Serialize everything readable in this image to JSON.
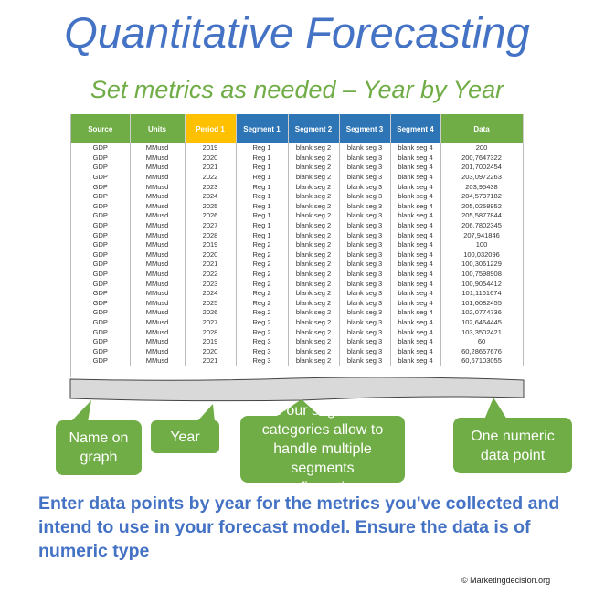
{
  "title": "Quantitative Forecasting",
  "subtitle": "Set metrics as needed – Year by Year",
  "colors": {
    "title": "#4472C4",
    "green": "#70AD47",
    "period": "#FFC000",
    "segment": "#2E75B6"
  },
  "table": {
    "headers": [
      "Source",
      "Units",
      "Period 1",
      "Segment 1",
      "Segment 2",
      "Segment 3",
      "Segment 4",
      "Data"
    ],
    "rows": [
      [
        "GDP",
        "MMusd",
        "2019",
        "Reg 1",
        "blank seg 2",
        "blank seg 3",
        "blank seg 4",
        "200"
      ],
      [
        "GDP",
        "MMusd",
        "2020",
        "Reg 1",
        "blank seg 2",
        "blank seg 3",
        "blank seg 4",
        "200,7647322"
      ],
      [
        "GDP",
        "MMusd",
        "2021",
        "Reg 1",
        "blank seg 2",
        "blank seg 3",
        "blank seg 4",
        "201,7002454"
      ],
      [
        "GDP",
        "MMusd",
        "2022",
        "Reg 1",
        "blank seg 2",
        "blank seg 3",
        "blank seg 4",
        "203,0972263"
      ],
      [
        "GDP",
        "MMusd",
        "2023",
        "Reg 1",
        "blank seg 2",
        "blank seg 3",
        "blank seg 4",
        "203,95438"
      ],
      [
        "GDP",
        "MMusd",
        "2024",
        "Reg 1",
        "blank seg 2",
        "blank seg 3",
        "blank seg 4",
        "204,5737182"
      ],
      [
        "GDP",
        "MMusd",
        "2025",
        "Reg 1",
        "blank seg 2",
        "blank seg 3",
        "blank seg 4",
        "205,0258952"
      ],
      [
        "GDP",
        "MMusd",
        "2026",
        "Reg 1",
        "blank seg 2",
        "blank seg 3",
        "blank seg 4",
        "205,5877844"
      ],
      [
        "GDP",
        "MMusd",
        "2027",
        "Reg 1",
        "blank seg 2",
        "blank seg 3",
        "blank seg 4",
        "206,7802345"
      ],
      [
        "GDP",
        "MMusd",
        "2028",
        "Reg 1",
        "blank seg 2",
        "blank seg 3",
        "blank seg 4",
        "207,941846"
      ],
      [
        "GDP",
        "MMusd",
        "2019",
        "Reg 2",
        "blank seg 2",
        "blank seg 3",
        "blank seg 4",
        "100"
      ],
      [
        "GDP",
        "MMusd",
        "2020",
        "Reg 2",
        "blank seg 2",
        "blank seg 3",
        "blank seg 4",
        "100,032096"
      ],
      [
        "GDP",
        "MMusd",
        "2021",
        "Reg 2",
        "blank seg 2",
        "blank seg 3",
        "blank seg 4",
        "100,3061229"
      ],
      [
        "GDP",
        "MMusd",
        "2022",
        "Reg 2",
        "blank seg 2",
        "blank seg 3",
        "blank seg 4",
        "100,7598908"
      ],
      [
        "GDP",
        "MMusd",
        "2023",
        "Reg 2",
        "blank seg 2",
        "blank seg 3",
        "blank seg 4",
        "100,9054412"
      ],
      [
        "GDP",
        "MMusd",
        "2024",
        "Reg 2",
        "blank seg 2",
        "blank seg 3",
        "blank seg 4",
        "101,1161674"
      ],
      [
        "GDP",
        "MMusd",
        "2025",
        "Reg 2",
        "blank seg 2",
        "blank seg 3",
        "blank seg 4",
        "101,6082455"
      ],
      [
        "GDP",
        "MMusd",
        "2026",
        "Reg 2",
        "blank seg 2",
        "blank seg 3",
        "blank seg 4",
        "102,0774736"
      ],
      [
        "GDP",
        "MMusd",
        "2027",
        "Reg 2",
        "blank seg 2",
        "blank seg 3",
        "blank seg 4",
        "102,6464445"
      ],
      [
        "GDP",
        "MMusd",
        "2028",
        "Reg 2",
        "blank seg 2",
        "blank seg 3",
        "blank seg 4",
        "103,3502421"
      ],
      [
        "GDP",
        "MMusd",
        "2019",
        "Reg 3",
        "blank seg 2",
        "blank seg 3",
        "blank seg 4",
        "60"
      ],
      [
        "GDP",
        "MMusd",
        "2020",
        "Reg 3",
        "blank seg 2",
        "blank seg 3",
        "blank seg 4",
        "60,28657676"
      ],
      [
        "GDP",
        "MMusd",
        "2021",
        "Reg 3",
        "blank seg 2",
        "blank seg 3",
        "blank seg 4",
        "60,67103055"
      ]
    ]
  },
  "callouts": {
    "name": "Name on graph",
    "year": "Year",
    "segments": "Four segment categories allow to handle multiple segments configurations",
    "data": "One numeric data point"
  },
  "bottom_text": "Enter data points by year for the metrics you've collected and intend to use in your forecast model. Ensure the data is of numeric type",
  "copyright": "© Marketingdecision.org"
}
